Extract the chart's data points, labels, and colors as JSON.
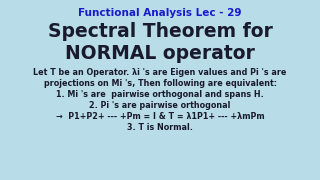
{
  "bg_color": "#b8dde8",
  "title_line1": "Functional Analysis Lec - 29",
  "title_line2": "Spectral Theorem for",
  "title_line3": "NORMAL operator",
  "body_line1": "Let T be an Operator. λi 's are Eigen values and Pi 's are",
  "body_line2": "projections on Mi 's, Then following are equivalent:",
  "body_line3": "1. Mi 's are  pairwise orthogonal and spans H.",
  "body_line4": "2. Pi 's are pairwise orthogonal",
  "body_line5": "→  P1+P2+ --- +Pm = I & T = λ1P1+ --- +λmPm",
  "body_line6": "3. T is Normal.",
  "title1_color": "#1a1acd",
  "title2_color": "#1a1a2e",
  "body_color": "#1a1a2e",
  "title1_fontsize": 7.5,
  "title2_fontsize": 13.5,
  "body_fontsize": 5.8
}
